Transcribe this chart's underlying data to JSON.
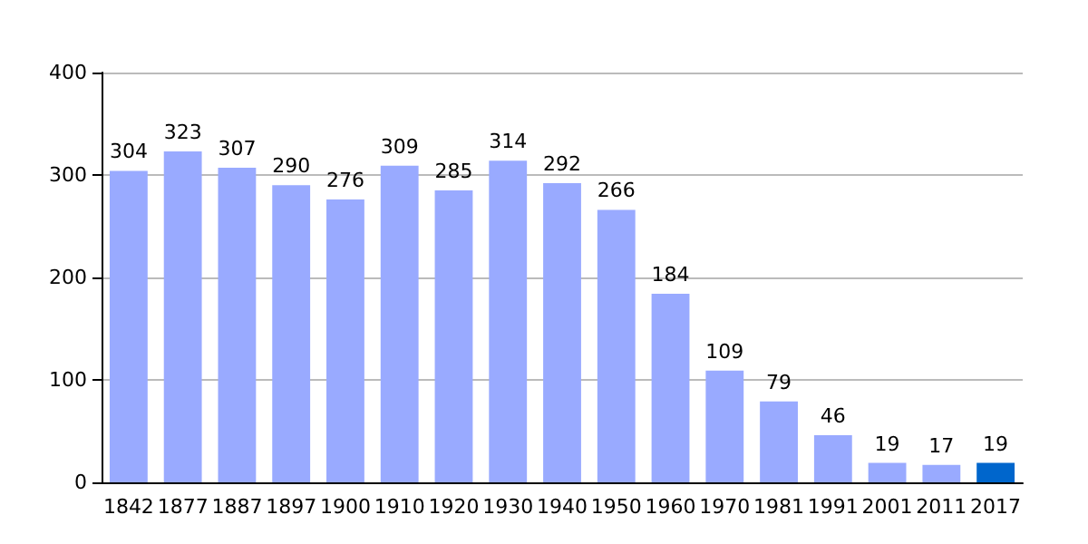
{
  "chart_data": {
    "type": "bar",
    "categories": [
      "1842",
      "1877",
      "1887",
      "1897",
      "1900",
      "1910",
      "1920",
      "1930",
      "1940",
      "1950",
      "1960",
      "1970",
      "1981",
      "1991",
      "2001",
      "2011",
      "2017"
    ],
    "values": [
      304,
      323,
      307,
      290,
      276,
      309,
      285,
      314,
      292,
      266,
      184,
      109,
      79,
      46,
      19,
      17,
      19
    ],
    "colors": [
      "#99aaff",
      "#99aaff",
      "#99aaff",
      "#99aaff",
      "#99aaff",
      "#99aaff",
      "#99aaff",
      "#99aaff",
      "#99aaff",
      "#99aaff",
      "#99aaff",
      "#99aaff",
      "#99aaff",
      "#99aaff",
      "#99aaff",
      "#99aaff",
      "#0066cc"
    ],
    "ylim": [
      0,
      400
    ],
    "yticks": [
      0,
      100,
      200,
      300,
      400
    ],
    "grid": "y",
    "data_labels": true
  }
}
